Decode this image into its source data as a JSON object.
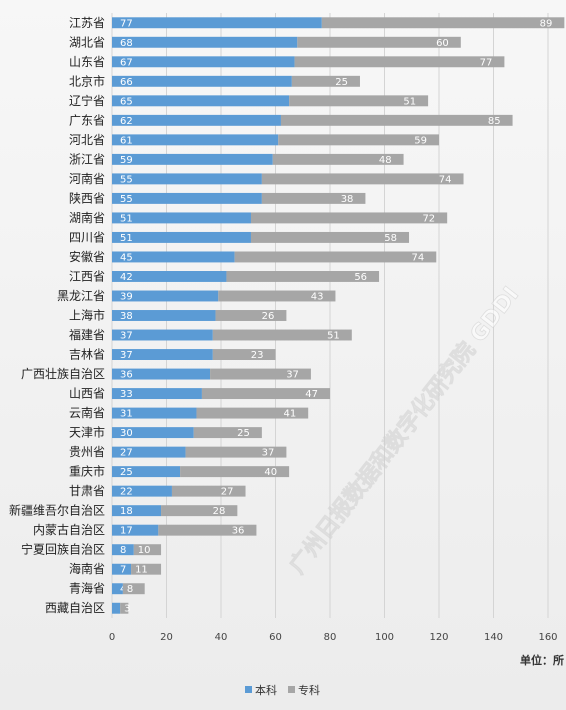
{
  "chart_data": {
    "type": "bar",
    "orientation": "horizontal",
    "stacked": true,
    "categories": [
      "江苏省",
      "湖北省",
      "山东省",
      "北京市",
      "辽宁省",
      "广东省",
      "河北省",
      "浙江省",
      "河南省",
      "陕西省",
      "湖南省",
      "四川省",
      "安徽省",
      "江西省",
      "黑龙江省",
      "上海市",
      "福建省",
      "吉林省",
      "广西壮族自治区",
      "山西省",
      "云南省",
      "天津市",
      "贵州省",
      "重庆市",
      "甘肃省",
      "新疆维吾尔自治区",
      "内蒙古自治区",
      "宁夏回族自治区",
      "海南省",
      "青海省",
      "西藏自治区"
    ],
    "series": [
      {
        "name": "本科",
        "color": "#5b9bd5",
        "values": [
          77,
          68,
          67,
          66,
          65,
          62,
          61,
          59,
          55,
          55,
          51,
          51,
          45,
          42,
          39,
          38,
          37,
          37,
          36,
          33,
          31,
          30,
          27,
          25,
          22,
          18,
          17,
          8,
          7,
          4,
          3
        ]
      },
      {
        "name": "专科",
        "color": "#a6a6a6",
        "values": [
          89,
          60,
          77,
          25,
          51,
          85,
          59,
          48,
          74,
          38,
          72,
          58,
          74,
          56,
          43,
          26,
          51,
          23,
          37,
          47,
          41,
          25,
          37,
          40,
          27,
          28,
          36,
          10,
          11,
          8,
          3
        ]
      }
    ],
    "xlim": [
      0,
      160
    ],
    "xticks": [
      0,
      20,
      40,
      60,
      80,
      100,
      120,
      140,
      160
    ],
    "unit": "单位：所",
    "legend_position": "bottom",
    "grid": true
  },
  "watermark": "广州日报数据和数字化研究院 GDDI"
}
